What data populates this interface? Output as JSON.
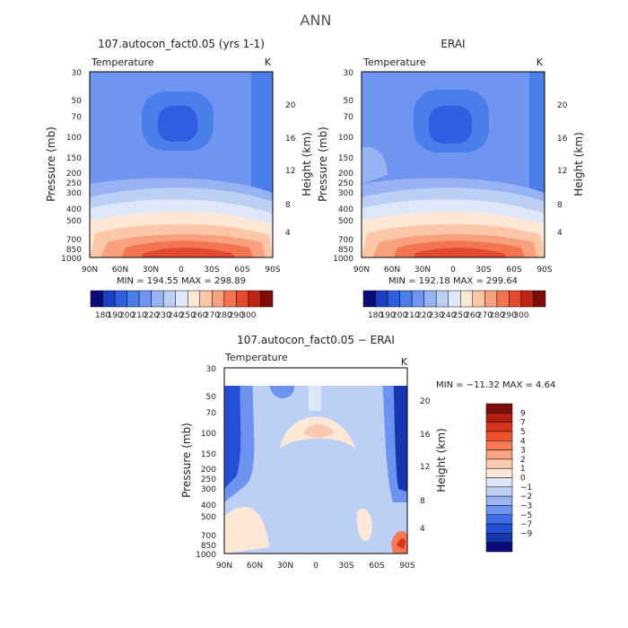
{
  "figure": {
    "title": "ANN"
  },
  "chart_data": [
    {
      "type": "heatmap",
      "title": "107.autocon_fact0.05 (yrs 1-1)",
      "subtitle": "Temperature",
      "units": "K",
      "ylabel": "Pressure (mb)",
      "y2label": "Height (km)",
      "x_ticks": [
        "90N",
        "60N",
        "30N",
        "0",
        "30S",
        "60S",
        "90S"
      ],
      "y_ticks": [
        "30",
        "50",
        "70",
        "100",
        "150",
        "200",
        "250",
        "300",
        "400",
        "500",
        "700",
        "850",
        "1000"
      ],
      "y2_ticks": [
        "20",
        "16",
        "12",
        "8",
        "4"
      ],
      "stats": "MIN = 194.55   MAX = 298.89",
      "colorbar_labels": [
        "180",
        "190",
        "200",
        "210",
        "220",
        "230",
        "240",
        "250",
        "260",
        "270",
        "280",
        "290",
        "300"
      ]
    },
    {
      "type": "heatmap",
      "title": "ERAI",
      "subtitle": "Temperature",
      "units": "K",
      "ylabel": "Pressure (mb)",
      "y2label": "Height (km)",
      "x_ticks": [
        "90N",
        "60N",
        "30N",
        "0",
        "30S",
        "60S",
        "90S"
      ],
      "y_ticks": [
        "30",
        "50",
        "70",
        "100",
        "150",
        "200",
        "250",
        "300",
        "400",
        "500",
        "700",
        "850",
        "1000"
      ],
      "y2_ticks": [
        "20",
        "16",
        "12",
        "8",
        "4"
      ],
      "stats": "MIN = 192.18   MAX = 299.64",
      "colorbar_labels": [
        "180",
        "190",
        "200",
        "210",
        "220",
        "230",
        "240",
        "250",
        "260",
        "270",
        "280",
        "290",
        "300"
      ]
    },
    {
      "type": "heatmap",
      "title": "107.autocon_fact0.05 − ERAI",
      "subtitle": "Temperature",
      "units": "K",
      "ylabel": "Pressure (mb)",
      "y2label": "Height (km)",
      "x_ticks": [
        "90N",
        "60N",
        "30N",
        "0",
        "30S",
        "60S",
        "90S"
      ],
      "y_ticks": [
        "30",
        "50",
        "70",
        "100",
        "150",
        "200",
        "250",
        "300",
        "400",
        "500",
        "700",
        "850",
        "1000"
      ],
      "y2_ticks": [
        "20",
        "16",
        "12",
        "8",
        "4"
      ],
      "stats": "MIN = −11.32   MAX =    4.64",
      "colorbar_labels": [
        "9",
        "7",
        "5",
        "4",
        "3",
        "2",
        "1",
        "0",
        "−1",
        "−2",
        "−3",
        "−5",
        "−7",
        "−9"
      ]
    }
  ],
  "colors": {
    "abs_scale": [
      "#0a0a7a",
      "#1a3fc4",
      "#2e5fe0",
      "#4a7eea",
      "#7095f0",
      "#98b3f3",
      "#bcd0f6",
      "#dde7f8",
      "#fde8d8",
      "#fcc7a8",
      "#f9a07c",
      "#f37550",
      "#e44a2e",
      "#c02514",
      "#7e0c0a"
    ],
    "diff_scale": [
      "#7e0c0a",
      "#b41f10",
      "#d8351c",
      "#f0532c",
      "#f77a55",
      "#fba383",
      "#fdc9ae",
      "#fde8d8",
      "#dde7f8",
      "#bcd0f6",
      "#98b3f3",
      "#6e93ef",
      "#3f6fe6",
      "#2550d6",
      "#1636b0",
      "#0a0a7a"
    ]
  }
}
